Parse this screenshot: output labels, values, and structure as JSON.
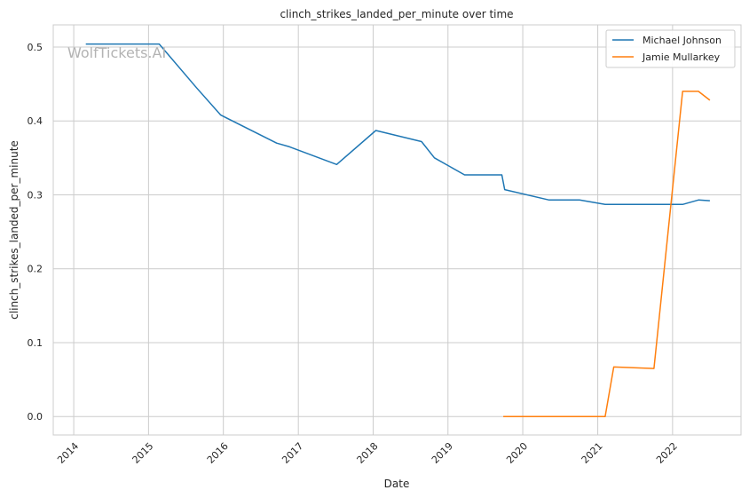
{
  "chart_data": {
    "type": "line",
    "title": "clinch_strikes_landed_per_minute over time",
    "xlabel": "Date",
    "ylabel": "clinch_strikes_landed_per_minute",
    "watermark": "WolfTickets.AI",
    "x_ticks": [
      "2014",
      "2015",
      "2016",
      "2017",
      "2018",
      "2019",
      "2020",
      "2021",
      "2022"
    ],
    "y_ticks": [
      "0.0",
      "0.1",
      "0.2",
      "0.3",
      "0.4",
      "0.5"
    ],
    "xlim": [
      "2013-09-23",
      "2022-12-01"
    ],
    "ylim": [
      -0.025,
      0.53
    ],
    "grid": true,
    "legend_position": "top-right",
    "series": [
      {
        "name": "Michael Johnson",
        "color": "#1f77b4",
        "points": [
          [
            "2014-03-01",
            0.504
          ],
          [
            "2015-02-22",
            0.504
          ],
          [
            "2015-08-23",
            0.445
          ],
          [
            "2015-12-19",
            0.408
          ],
          [
            "2016-09-17",
            0.37
          ],
          [
            "2016-11-19",
            0.365
          ],
          [
            "2017-07-07",
            0.341
          ],
          [
            "2018-01-14",
            0.387
          ],
          [
            "2018-08-25",
            0.372
          ],
          [
            "2018-10-27",
            0.35
          ],
          [
            "2019-03-23",
            0.327
          ],
          [
            "2019-09-21",
            0.327
          ],
          [
            "2019-10-05",
            0.307
          ],
          [
            "2020-05-09",
            0.293
          ],
          [
            "2020-10-04",
            0.293
          ],
          [
            "2021-02-06",
            0.287
          ],
          [
            "2022-02-19",
            0.287
          ],
          [
            "2022-05-07",
            0.293
          ],
          [
            "2022-07-02",
            0.292
          ]
        ]
      },
      {
        "name": "Jamie Mullarkey",
        "color": "#ff7f0e",
        "points": [
          [
            "2019-09-28",
            0.0
          ],
          [
            "2021-02-06",
            0.0
          ],
          [
            "2021-03-20",
            0.067
          ],
          [
            "2021-10-02",
            0.065
          ],
          [
            "2022-02-19",
            0.44
          ],
          [
            "2022-05-07",
            0.44
          ],
          [
            "2022-07-02",
            0.428
          ]
        ]
      }
    ]
  }
}
